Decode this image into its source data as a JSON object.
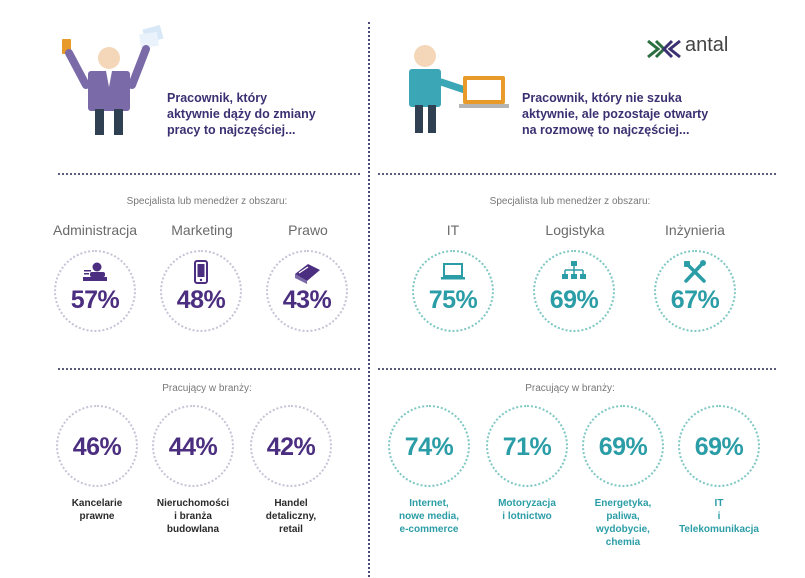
{
  "logo": {
    "text": "antal"
  },
  "left": {
    "lead": [
      "Pracownik, który",
      "aktywnie dąży do zmiany",
      "pracy to najczęściej..."
    ],
    "specialist_heading": "Specjalista lub menedżer z obszaru:",
    "areas": [
      {
        "name": "Administracja",
        "value": "57%",
        "icon": "person-desk-icon"
      },
      {
        "name": "Marketing",
        "value": "48%",
        "icon": "smartphone-icon"
      },
      {
        "name": "Prawo",
        "value": "43%",
        "icon": "law-book-icon"
      }
    ],
    "industry_heading": "Pracujący w branży:",
    "industries": [
      {
        "value": "46%",
        "label": [
          "Kancelarie",
          "prawne"
        ]
      },
      {
        "value": "44%",
        "label": [
          "Nieruchomości",
          "i branża",
          "budowlana"
        ]
      },
      {
        "value": "42%",
        "label": [
          "Handel",
          "detaliczny,",
          "retail"
        ]
      }
    ]
  },
  "right": {
    "lead": [
      "Pracownik, który nie szuka",
      "aktywnie, ale pozostaje otwarty",
      "na rozmowę to najczęściej..."
    ],
    "specialist_heading": "Specjalista lub menedżer z obszaru:",
    "areas": [
      {
        "name": "IT",
        "value": "75%",
        "icon": "monitor-icon"
      },
      {
        "name": "Logistyka",
        "value": "69%",
        "icon": "org-chart-icon"
      },
      {
        "name": "Inżynieria",
        "value": "67%",
        "icon": "tools-icon"
      }
    ],
    "industry_heading": "Pracujący w branży:",
    "industries": [
      {
        "value": "74%",
        "label": [
          "Internet,",
          "nowe media,",
          "e-commerce"
        ]
      },
      {
        "value": "71%",
        "label": [
          "Motoryzacja",
          "i lotnictwo"
        ]
      },
      {
        "value": "69%",
        "label": [
          "Energetyka,",
          "paliwa,",
          "wydobycie,",
          "chemia"
        ]
      },
      {
        "value": "69%",
        "label": [
          "IT",
          "i",
          "Telekomunikacja"
        ]
      }
    ]
  },
  "colors": {
    "purple": "#4b2e7f",
    "teal": "#2b9da6",
    "lead": "#3b3172"
  }
}
